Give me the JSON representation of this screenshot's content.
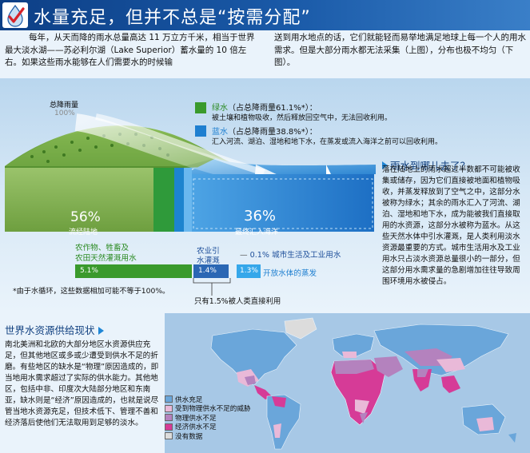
{
  "header": {
    "title": "水量充足，但并不总是“按需分配”",
    "logo_icon": "checkmark-water-drop-icon"
  },
  "intro": {
    "left": "每年，从天而降的雨水总量高达 11 万立方千米，相当于世界最大淡水湖——苏必利尔湖（Lake Superior）蓄水量的 10 倍左右。如果这些雨水能够在人们需要水的时候输",
    "right": "送到用水地点的话，它们就能轻而易举地满足地球上每一个人的用水需求。但是大部分雨水都无法采集（上图），分布也极不均匀（下图）。"
  },
  "diagram": {
    "total_rain_label": "总降雨量",
    "total_rain_pct": "100%",
    "green_water": {
      "title": "绿水",
      "share": "（占总降雨量61.1%*）：",
      "desc": "被土壤和植物吸收，然后释放回空气中，无法回收利用。",
      "color": "#3a9a2c"
    },
    "blue_water": {
      "title": "蓝水",
      "share": "（占总降雨量38.8%*）：",
      "desc": "汇入河流、湖泊、湿地和地下水，在蒸发或流入海洋之前可以回收利用。",
      "color": "#1e7fd0"
    },
    "land_pct": "56%",
    "land_label": "流经陆地",
    "sea_pct": "36%",
    "sea_label": "最终汇入海洋",
    "agri_label_1": "农作物、牲畜及",
    "agri_label_2": "农田天然灌溉用水",
    "agri_irrig_1": "农业引",
    "agri_irrig_2": "水灌溉",
    "bar_agri_pct": "5.1%",
    "bar_irrig_pct": "1.4%",
    "bar_evap_pct": "1.3%",
    "city_pct": "0.1%",
    "city_label": "城市生活及工业用水",
    "evap_label": "开放水体的蒸发",
    "footnote": "*由于水循环，这些数据相加可能不等于100%。",
    "human_use_note": "只有1.5%被人类直接利用"
  },
  "rain_panel": {
    "heading": "雨水到哪儿去了？",
    "body": "落在陆地上的雨水超过半数都不可能被收集或储存，因为它们直接被地面和植物吸收，并蒸发释放到了空气之中，这部分水被称为绿水；其余的雨水汇入了河流、湖泊、湿地和地下水，成为能被我们直接取用的水资源，这部分水被称为蓝水。从这些天然水体中引水灌溉，是人类利用淡水资源最重要的方式。城市生活用水及工业用水只占淡水资源总量很小的一部分，但这部分用水需求量的急剧增加往往导致周围环境用水被侵占。"
  },
  "world": {
    "heading": "世界水资源供给现状",
    "body": "南北美洲和北欧的大部分地区水资源供应充足，但其他地区或多或少遭受到供水不足的折磨。有些地区的缺水是“物理”原因造成的，即当地用水需求超过了实际的供水能力。其他地区，包括中非、印度次大陆部分地区和东南亚，缺水则是“经济”原因造成的，也就是说尽管当地水资源充足，但技术低下、管理不善和经济落后使他们无法取用到足够的淡水。",
    "legend": [
      {
        "label": "供水充足",
        "color": "#6aa6da"
      },
      {
        "label": "受到物理供水不足的威胁",
        "color": "#e9b9d8"
      },
      {
        "label": "物理供水不足",
        "color": "#b482be"
      },
      {
        "label": "经济供水不足",
        "color": "#d63b97"
      },
      {
        "label": "没有数据",
        "color": "#dcdcdc"
      }
    ]
  }
}
